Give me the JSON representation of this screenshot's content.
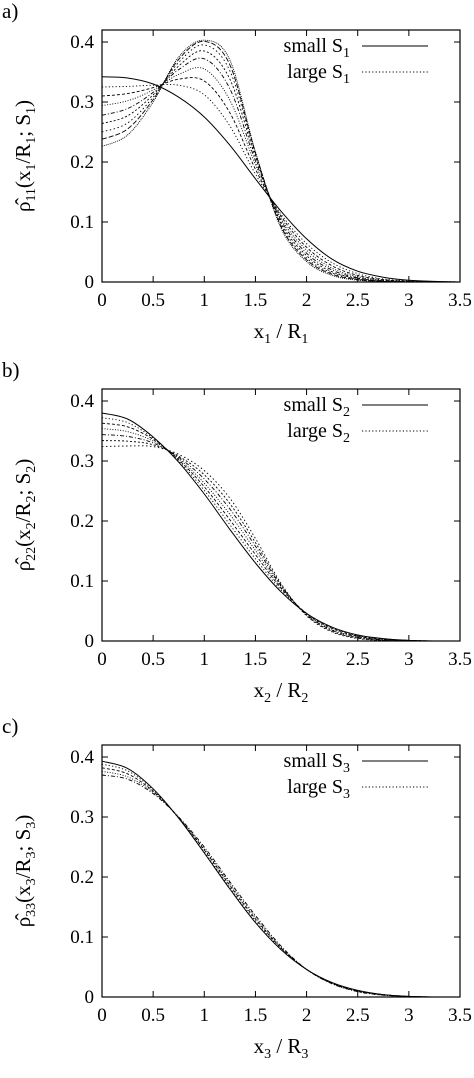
{
  "figure": {
    "panels": [
      "a",
      "b",
      "c"
    ]
  },
  "chart_data": [
    {
      "type": "line",
      "panel_label": "a)",
      "xlabel": {
        "main": "x",
        "sub": "1",
        "mid": " / R",
        "sub2": "1"
      },
      "ylabel": {
        "pre": "ρ̂",
        "sub": "11",
        "mid": "(x",
        "sub2": "1",
        "mid2": "/R",
        "sub3": "1",
        "mid3": "; S",
        "sub4": "1",
        "post": ")"
      },
      "xlim": [
        0,
        3.5
      ],
      "ylim": [
        0,
        0.42
      ],
      "x_ticks": [
        "0",
        "0.5",
        "1",
        "1.5",
        "2",
        "2.5",
        "3",
        "3.5"
      ],
      "y_ticks": [
        "0",
        "0.1",
        "0.2",
        "0.3",
        "0.4"
      ],
      "legend": {
        "placement": "top-right",
        "entries": [
          {
            "main": "small S",
            "sub": "1",
            "style": "solid"
          },
          {
            "main": "large S",
            "sub": "1",
            "style": "dotted"
          }
        ]
      },
      "x": [
        0,
        0.25,
        0.5,
        0.75,
        1.0,
        1.25,
        1.5,
        1.75,
        2.0,
        2.25,
        2.5,
        2.75,
        3.0,
        3.25,
        3.5
      ],
      "series": [
        {
          "values": [
            0.342,
            0.34,
            0.33,
            0.308,
            0.275,
            0.228,
            0.172,
            0.118,
            0.072,
            0.038,
            0.018,
            0.008,
            0.003,
            0.001,
            0.0
          ]
        },
        {
          "values": [
            0.325,
            0.326,
            0.328,
            0.328,
            0.312,
            0.26,
            0.18,
            0.113,
            0.064,
            0.032,
            0.014,
            0.005,
            0.002,
            0.001,
            0.0
          ]
        },
        {
          "values": [
            0.31,
            0.314,
            0.324,
            0.338,
            0.335,
            0.282,
            0.188,
            0.11,
            0.058,
            0.027,
            0.011,
            0.004,
            0.001,
            0.0,
            0.0
          ]
        },
        {
          "values": [
            0.294,
            0.302,
            0.32,
            0.346,
            0.355,
            0.303,
            0.196,
            0.106,
            0.053,
            0.023,
            0.009,
            0.003,
            0.001,
            0.0,
            0.0
          ]
        },
        {
          "values": [
            0.278,
            0.289,
            0.316,
            0.354,
            0.372,
            0.322,
            0.202,
            0.103,
            0.048,
            0.02,
            0.007,
            0.002,
            0.001,
            0.0,
            0.0
          ]
        },
        {
          "values": [
            0.264,
            0.277,
            0.312,
            0.36,
            0.385,
            0.338,
            0.208,
            0.099,
            0.044,
            0.017,
            0.006,
            0.002,
            0.0,
            0.0,
            0.0
          ]
        },
        {
          "values": [
            0.25,
            0.265,
            0.308,
            0.366,
            0.395,
            0.352,
            0.212,
            0.096,
            0.04,
            0.015,
            0.005,
            0.001,
            0.0,
            0.0,
            0.0
          ]
        },
        {
          "values": [
            0.238,
            0.255,
            0.304,
            0.371,
            0.401,
            0.362,
            0.215,
            0.093,
            0.037,
            0.013,
            0.004,
            0.001,
            0.0,
            0.0,
            0.0
          ]
        },
        {
          "values": [
            0.226,
            0.245,
            0.3,
            0.375,
            0.403,
            0.37,
            0.217,
            0.09,
            0.034,
            0.011,
            0.003,
            0.001,
            0.0,
            0.0,
            0.0
          ]
        }
      ]
    },
    {
      "type": "line",
      "panel_label": "b)",
      "xlabel": {
        "main": "x",
        "sub": "2",
        "mid": " / R",
        "sub2": "2"
      },
      "ylabel": {
        "pre": "ρ̂",
        "sub": "22",
        "mid": "(x",
        "sub2": "2",
        "mid2": "/R",
        "sub3": "2",
        "mid3": "; S",
        "sub4": "2",
        "post": ")"
      },
      "xlim": [
        0,
        3.5
      ],
      "ylim": [
        0,
        0.42
      ],
      "x_ticks": [
        "0",
        "0.5",
        "1",
        "1.5",
        "2",
        "2.5",
        "3",
        "3.5"
      ],
      "y_ticks": [
        "0",
        "0.1",
        "0.2",
        "0.3",
        "0.4"
      ],
      "legend": {
        "placement": "top-right",
        "entries": [
          {
            "main": "small S",
            "sub": "2",
            "style": "solid"
          },
          {
            "main": "large S",
            "sub": "2",
            "style": "dotted"
          }
        ]
      },
      "x": [
        0,
        0.25,
        0.5,
        0.75,
        1.0,
        1.25,
        1.5,
        1.75,
        2.0,
        2.25,
        2.5,
        2.75,
        3.0,
        3.25,
        3.5
      ],
      "series": [
        {
          "values": [
            0.38,
            0.37,
            0.34,
            0.298,
            0.245,
            0.186,
            0.13,
            0.082,
            0.046,
            0.023,
            0.01,
            0.004,
            0.001,
            0.0,
            0.0
          ]
        },
        {
          "values": [
            0.372,
            0.364,
            0.338,
            0.3,
            0.251,
            0.194,
            0.137,
            0.085,
            0.046,
            0.022,
            0.009,
            0.003,
            0.001,
            0.0,
            0.0
          ]
        },
        {
          "values": [
            0.363,
            0.357,
            0.336,
            0.302,
            0.257,
            0.202,
            0.144,
            0.088,
            0.046,
            0.021,
            0.008,
            0.003,
            0.001,
            0.0,
            0.0
          ]
        },
        {
          "values": [
            0.354,
            0.349,
            0.333,
            0.304,
            0.263,
            0.211,
            0.151,
            0.09,
            0.045,
            0.019,
            0.007,
            0.002,
            0.001,
            0.0,
            0.0
          ]
        },
        {
          "values": [
            0.344,
            0.341,
            0.33,
            0.306,
            0.27,
            0.22,
            0.158,
            0.092,
            0.044,
            0.018,
            0.006,
            0.002,
            0.0,
            0.0,
            0.0
          ]
        },
        {
          "values": [
            0.334,
            0.333,
            0.327,
            0.308,
            0.277,
            0.229,
            0.164,
            0.094,
            0.043,
            0.016,
            0.005,
            0.001,
            0.0,
            0.0,
            0.0
          ]
        },
        {
          "values": [
            0.324,
            0.325,
            0.324,
            0.311,
            0.284,
            0.238,
            0.171,
            0.096,
            0.042,
            0.015,
            0.004,
            0.001,
            0.0,
            0.0,
            0.0
          ]
        }
      ]
    },
    {
      "type": "line",
      "panel_label": "c)",
      "xlabel": {
        "main": "x",
        "sub": "3",
        "mid": " / R",
        "sub2": "3"
      },
      "ylabel": {
        "pre": "ρ̂",
        "sub": "33",
        "mid": "(x",
        "sub2": "3",
        "mid2": "/R",
        "sub3": "3",
        "mid3": "; S",
        "sub4": "3",
        "post": ")"
      },
      "xlim": [
        0,
        3.5
      ],
      "ylim": [
        0,
        0.42
      ],
      "x_ticks": [
        "0",
        "0.5",
        "1",
        "1.5",
        "2",
        "2.5",
        "3",
        "3.5"
      ],
      "y_ticks": [
        "0",
        "0.1",
        "0.2",
        "0.3",
        "0.4"
      ],
      "legend": {
        "placement": "top-right",
        "entries": [
          {
            "main": "small S",
            "sub": "3",
            "style": "solid"
          },
          {
            "main": "large S",
            "sub": "3",
            "style": "dotted"
          }
        ]
      },
      "x": [
        0,
        0.25,
        0.5,
        0.75,
        1.0,
        1.25,
        1.5,
        1.75,
        2.0,
        2.25,
        2.5,
        2.75,
        3.0,
        3.25,
        3.5
      ],
      "series": [
        {
          "values": [
            0.393,
            0.381,
            0.347,
            0.298,
            0.24,
            0.18,
            0.124,
            0.079,
            0.046,
            0.024,
            0.011,
            0.004,
            0.001,
            0.0,
            0.0
          ]
        },
        {
          "values": [
            0.388,
            0.377,
            0.345,
            0.298,
            0.242,
            0.183,
            0.127,
            0.081,
            0.046,
            0.023,
            0.01,
            0.004,
            0.001,
            0.0,
            0.0
          ]
        },
        {
          "values": [
            0.382,
            0.372,
            0.343,
            0.299,
            0.245,
            0.186,
            0.13,
            0.082,
            0.046,
            0.023,
            0.01,
            0.004,
            0.001,
            0.0,
            0.0
          ]
        },
        {
          "values": [
            0.376,
            0.367,
            0.341,
            0.299,
            0.247,
            0.189,
            0.133,
            0.083,
            0.046,
            0.022,
            0.009,
            0.003,
            0.001,
            0.0,
            0.0
          ]
        },
        {
          "values": [
            0.37,
            0.363,
            0.339,
            0.3,
            0.25,
            0.192,
            0.136,
            0.085,
            0.046,
            0.022,
            0.009,
            0.003,
            0.001,
            0.0,
            0.0
          ]
        }
      ]
    }
  ]
}
